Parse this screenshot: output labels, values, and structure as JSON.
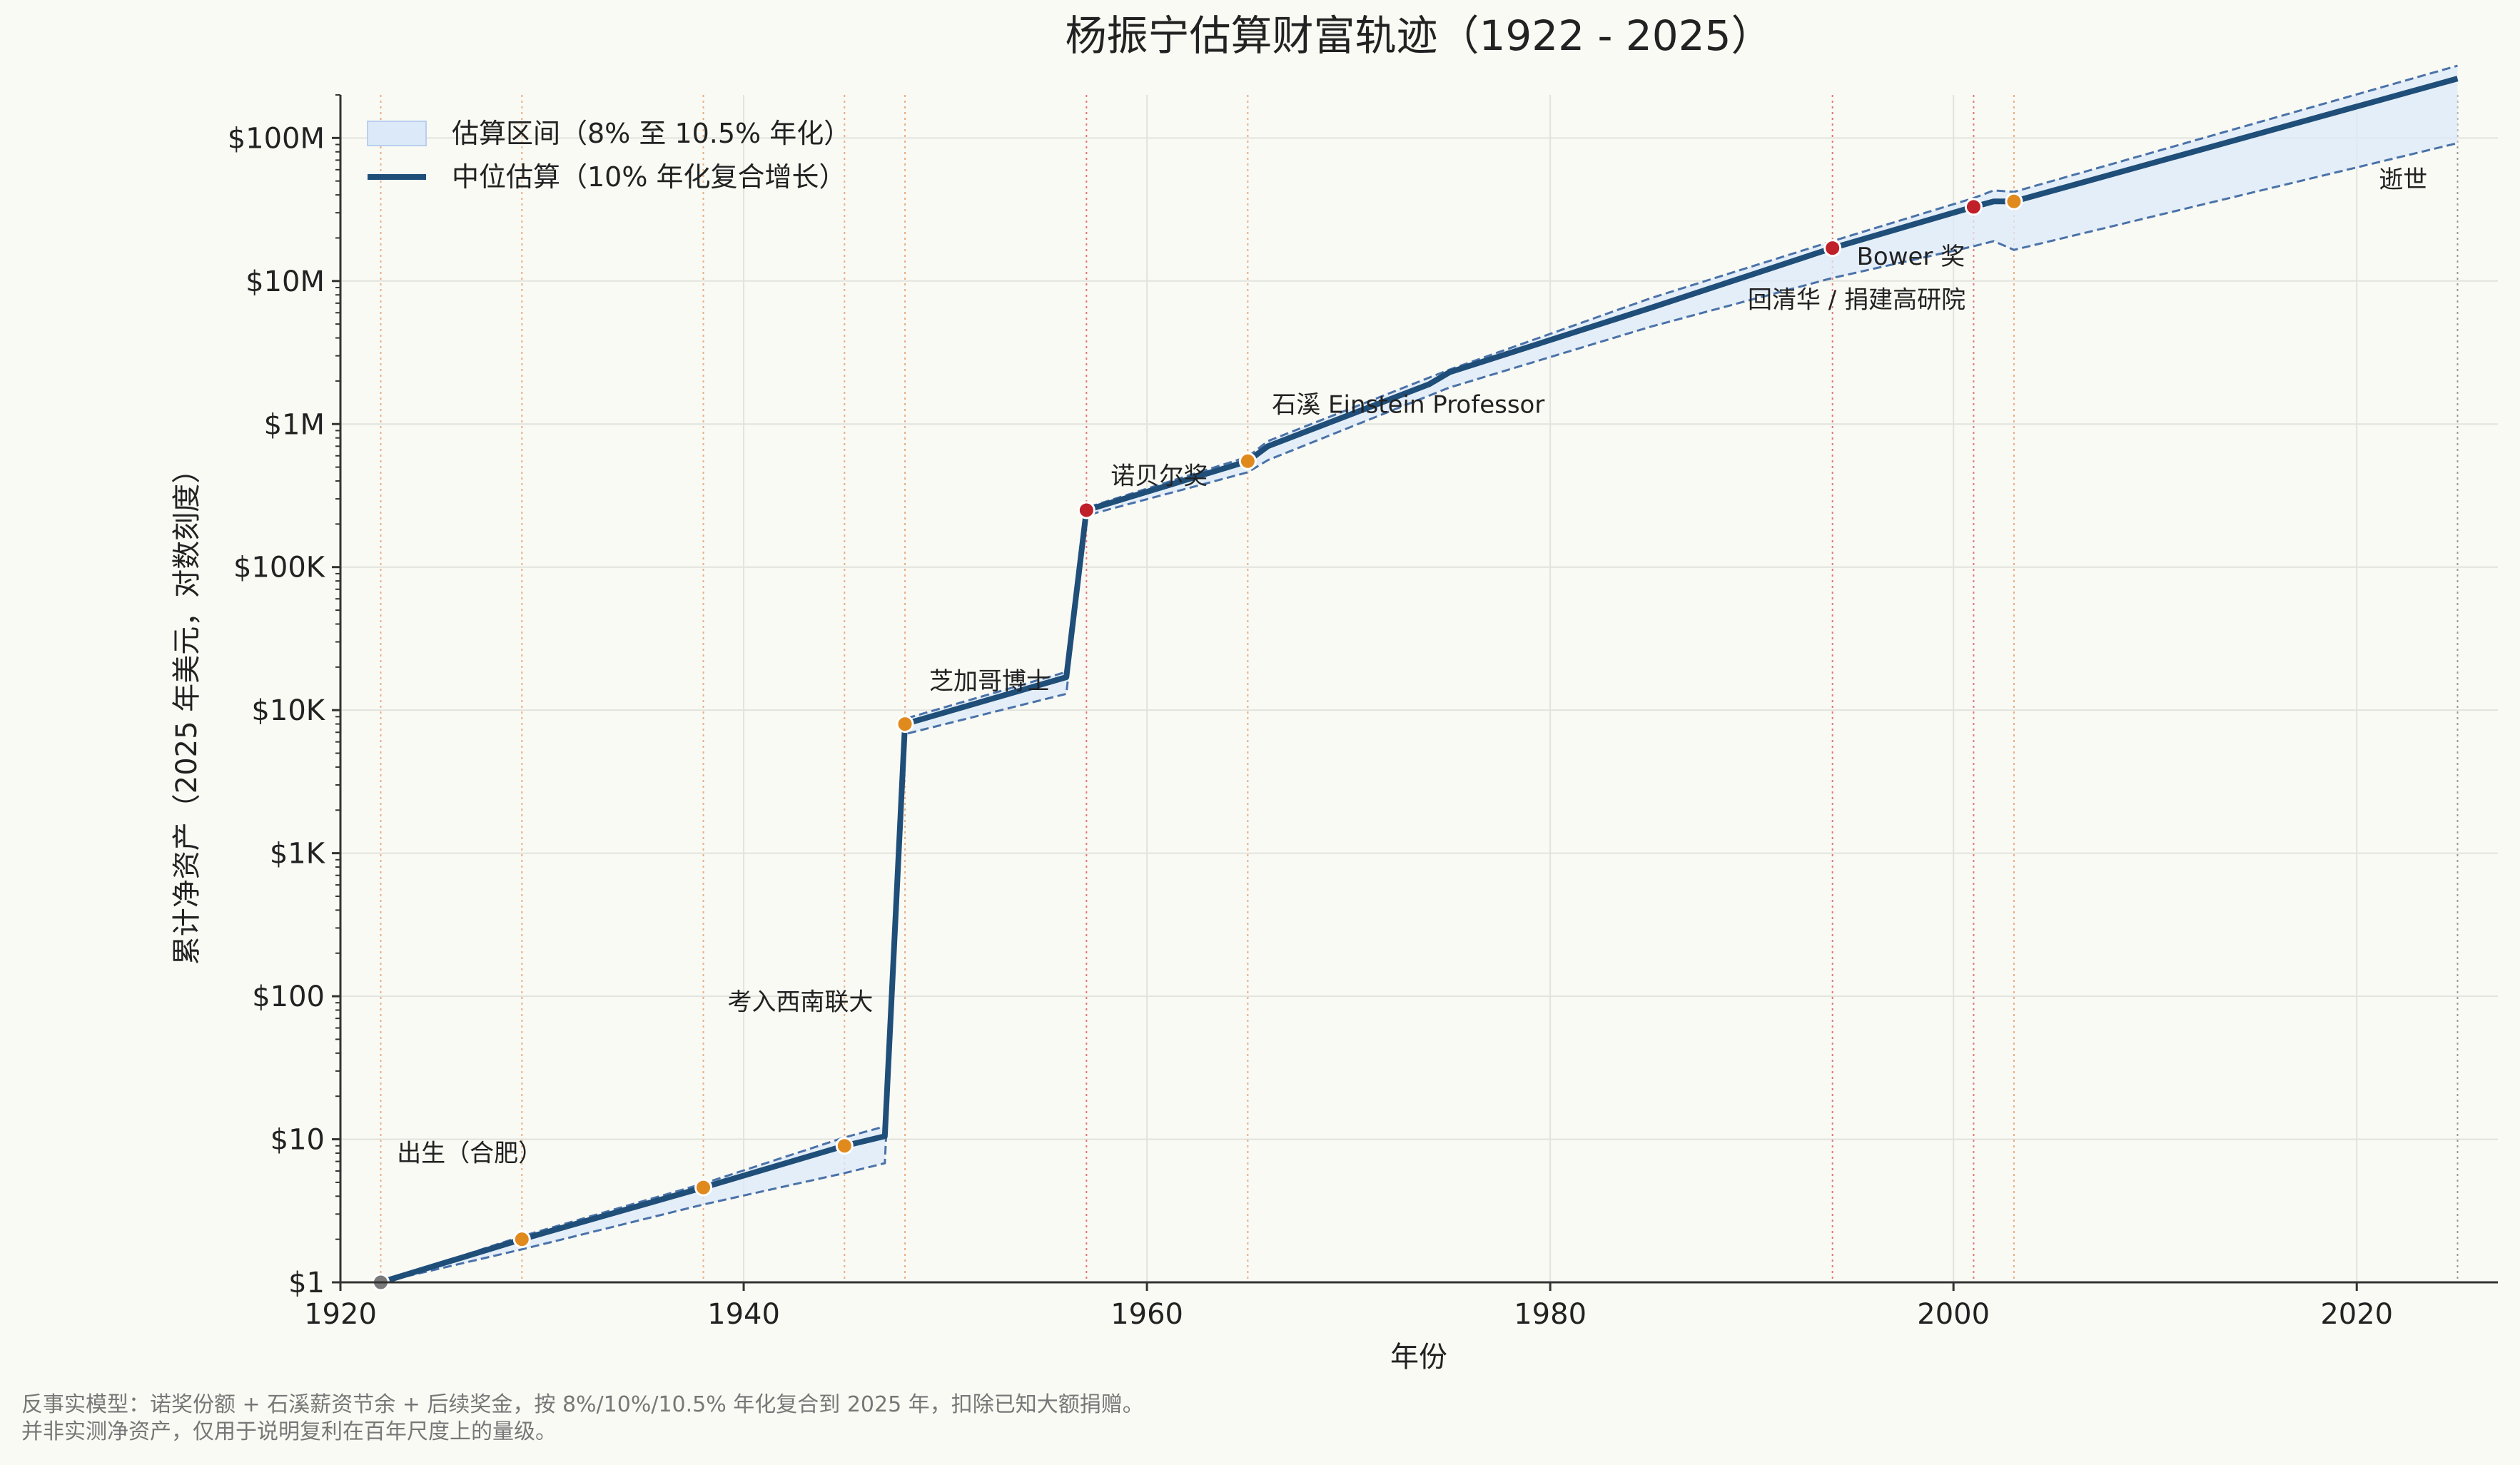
{
  "chart_data": {
    "type": "line",
    "title": "杨振宁估算财富轨迹（1922 - 2025）",
    "xlabel": "年份",
    "ylabel": "累计净资产（2025 年美元，对数刻度）",
    "xlim": [
      1920,
      2027
    ],
    "ylim": [
      1,
      200000000
    ],
    "y_scale": "log",
    "grid": true,
    "legend_placement": "top-left",
    "x_ticks": [
      1920,
      1940,
      1960,
      1980,
      2000,
      2020
    ],
    "x_tick_labels": [
      "1920",
      "1940",
      "1960",
      "1980",
      "2000",
      "2020"
    ],
    "y_ticks": [
      1,
      10,
      100,
      1000,
      10000,
      100000,
      1000000,
      10000000,
      100000000
    ],
    "y_tick_labels": [
      "$1",
      "$10",
      "$100",
      "$1K",
      "$10K",
      "$100K",
      "$1M",
      "$10M",
      "$100M"
    ],
    "series": [
      {
        "name": "中位估算（10% 年化复合增长）",
        "color": "#1f4e79",
        "x": [
          1922,
          1929,
          1938,
          1945,
          1947,
          1948,
          1956,
          1957,
          1965,
          1966,
          1974,
          1975,
          1985,
          1994,
          2001,
          2002,
          2003,
          2025
        ],
        "values": [
          1,
          2,
          4.6,
          9,
          10.5,
          8000,
          17000,
          250000,
          550000,
          700000,
          1900000,
          2300000,
          6500000,
          17000000,
          33000000,
          36000000,
          36000000,
          260000000
        ]
      },
      {
        "name": "估算区间（8% 至 10.5% 年化）",
        "color": "#dce9f8",
        "x": [
          1922,
          1929,
          1938,
          1945,
          1947,
          1948,
          1956,
          1957,
          1965,
          1966,
          1975,
          1985,
          1994,
          2001,
          2002,
          2003,
          2025
        ],
        "lower": [
          1,
          1.7,
          3.5,
          5.8,
          6.8,
          6800,
          13000,
          230000,
          460000,
          560000,
          1800000,
          4800000,
          10500000,
          17500000,
          19000000,
          16500000,
          92000000
        ],
        "upper": [
          1,
          2.1,
          4.9,
          10.3,
          12.3,
          8700,
          18500,
          260000,
          590000,
          760000,
          2400000,
          7600000,
          19000000,
          38000000,
          43000000,
          42000000,
          320000000
        ]
      }
    ],
    "events": [
      {
        "year": 1922,
        "label": "出生（合肥）",
        "color": "#7a7a7a",
        "line_color": "#e8a070",
        "value": 1
      },
      {
        "year": 1929,
        "label": "",
        "color": "#e08a1e",
        "line_color": "#e8a070",
        "value": 2
      },
      {
        "year": 1938,
        "label": "考入西南联大",
        "color": "#e08a1e",
        "line_color": "#e8a070",
        "value": 4.6
      },
      {
        "year": 1945,
        "label": "",
        "color": "#e08a1e",
        "line_color": "#e8a070",
        "value": 9
      },
      {
        "year": 1948,
        "label": "芝加哥博士",
        "color": "#e08a1e",
        "line_color": "#e8a070",
        "value": 8000
      },
      {
        "year": 1957,
        "label": "诺贝尔奖",
        "color": "#c0202a",
        "line_color": "#e06060",
        "value": 250000
      },
      {
        "year": 1965,
        "label": "石溪 Einstein Professor",
        "color": "#e08a1e",
        "line_color": "#e8a070",
        "value": 550000
      },
      {
        "year": 1994,
        "label": "Bower 奖",
        "color": "#c0202a",
        "line_color": "#e06060",
        "value": 17000000
      },
      {
        "year": 2001,
        "label": "回清华 / 捐建高研院",
        "color": "#c0202a",
        "line_color": "#e06060",
        "value": 33000000
      },
      {
        "year": 2003,
        "label": "",
        "color": "#e08a1e",
        "line_color": "#e8a070",
        "value": 36000000
      },
      {
        "year": 2025,
        "label": "逝世",
        "color": "",
        "line_color": "#888888",
        "value": null
      }
    ],
    "footnote": [
      "反事实模型：诺奖份额 + 石溪薪资节余 + 后续奖金，按 8%/10%/10.5% 年化复合到 2025 年，扣除已知大额捐赠。",
      "并非实测净资产，仅用于说明复利在百年尺度上的量级。"
    ]
  }
}
